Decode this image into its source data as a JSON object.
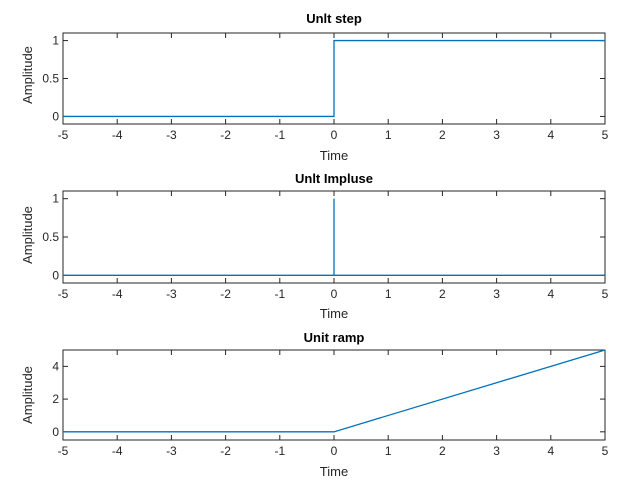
{
  "chart_data": [
    {
      "type": "line",
      "title": "Unlt step",
      "xlabel": "Time",
      "ylabel": "Amplitude",
      "xlim": [
        -5,
        5
      ],
      "ylim": [
        -0.1,
        1.1
      ],
      "xticks": [
        "-5",
        "-4",
        "-3",
        "-2",
        "-1",
        "0",
        "1",
        "2",
        "3",
        "4",
        "5"
      ],
      "yticks": [
        "0",
        "0.5",
        "1"
      ],
      "grid": false,
      "series": [
        {
          "color": "#0072BD",
          "x": [
            -5,
            0,
            0,
            5
          ],
          "y": [
            0,
            0,
            1,
            1
          ]
        }
      ]
    },
    {
      "type": "line",
      "title": "Unlt Impluse",
      "xlabel": "Time",
      "ylabel": "Amplitude",
      "xlim": [
        -5,
        5
      ],
      "ylim": [
        -0.1,
        1.1
      ],
      "xticks": [
        "-5",
        "-4",
        "-3",
        "-2",
        "-1",
        "0",
        "1",
        "2",
        "3",
        "4",
        "5"
      ],
      "yticks": [
        "0",
        "0.5",
        "1"
      ],
      "grid": false,
      "series": [
        {
          "color": "#0072BD",
          "x": [
            -5,
            0,
            0,
            0,
            5
          ],
          "y": [
            0,
            0,
            1,
            0,
            0
          ]
        }
      ]
    },
    {
      "type": "line",
      "title": "Unit ramp",
      "xlabel": "Time",
      "ylabel": "Amplitude",
      "xlim": [
        -5,
        5
      ],
      "ylim": [
        -0.5,
        5
      ],
      "xticks": [
        "-5",
        "-4",
        "-3",
        "-2",
        "-1",
        "0",
        "1",
        "2",
        "3",
        "4",
        "5"
      ],
      "yticks": [
        "0",
        "2",
        "4"
      ],
      "grid": false,
      "series": [
        {
          "color": "#0072BD",
          "x": [
            -5,
            0,
            5
          ],
          "y": [
            0,
            0,
            5
          ]
        }
      ]
    }
  ]
}
